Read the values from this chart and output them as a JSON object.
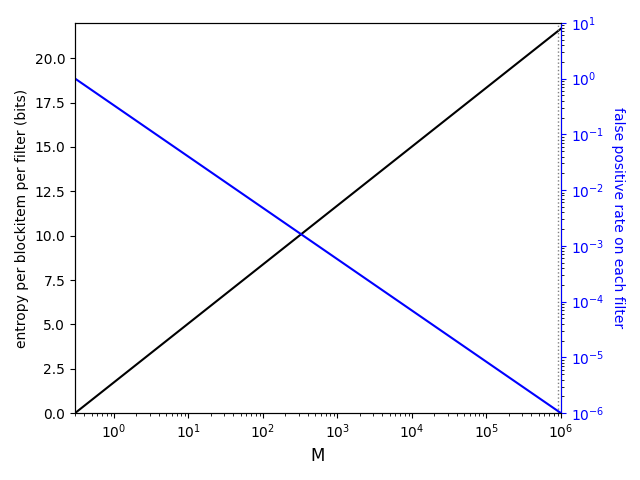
{
  "xlabel": "M",
  "ylabel_left": "entropy per blockitem per filter (bits)",
  "ylabel_right": "false positive rate on each filter",
  "M_min": 0.3,
  "M_max": 1000000.0,
  "entropy_ylim": [
    0,
    22
  ],
  "fpr_ylim_min": 1e-06,
  "fpr_ylim_max": 10,
  "vline_x": 900000.0,
  "black_line_color": "black",
  "blue_line_color": "blue",
  "figsize": [
    6.4,
    4.8
  ],
  "dpi": 100
}
